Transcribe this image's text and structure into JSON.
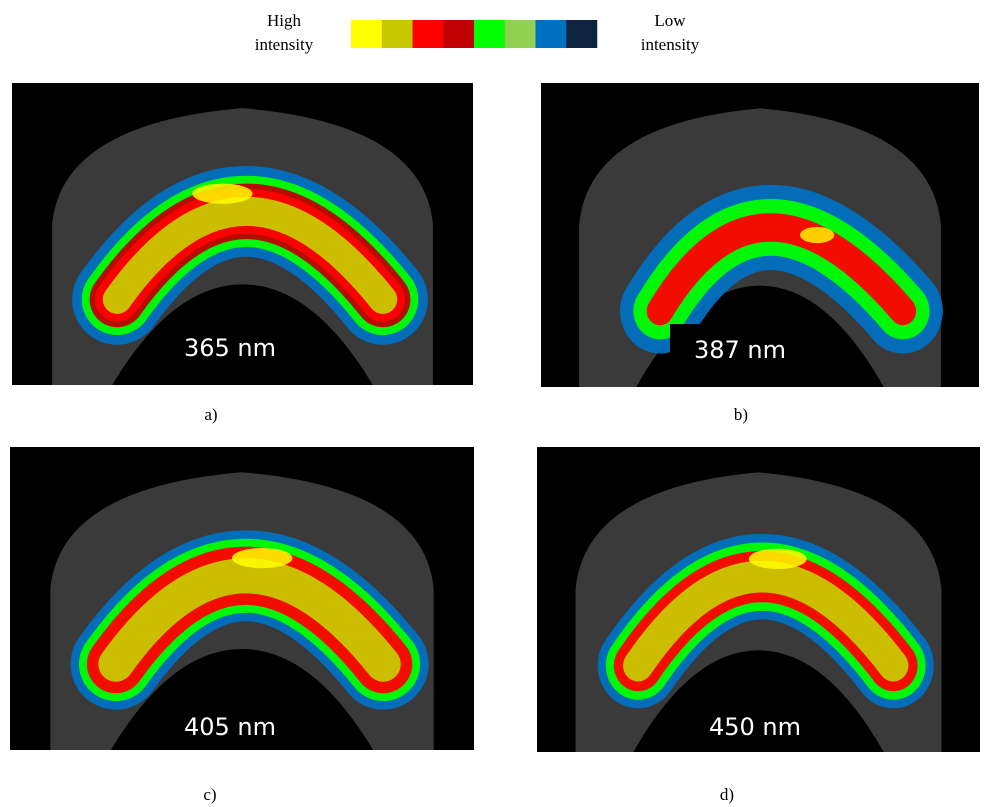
{
  "legend": {
    "high_label": [
      "High",
      "intensity"
    ],
    "low_label": [
      "Low",
      "intensity"
    ],
    "colors": [
      "#ffff00",
      "#c8c800",
      "#ff0000",
      "#c00000",
      "#00ff00",
      "#92d050",
      "#0070c0",
      "#0f2441"
    ]
  },
  "panels": [
    {
      "wavelength": "365 nm",
      "caption": "a)"
    },
    {
      "wavelength": "387 nm",
      "caption": "b)"
    },
    {
      "wavelength": "405 nm",
      "caption": "c)"
    },
    {
      "wavelength": "450 nm",
      "caption": "d)"
    }
  ]
}
